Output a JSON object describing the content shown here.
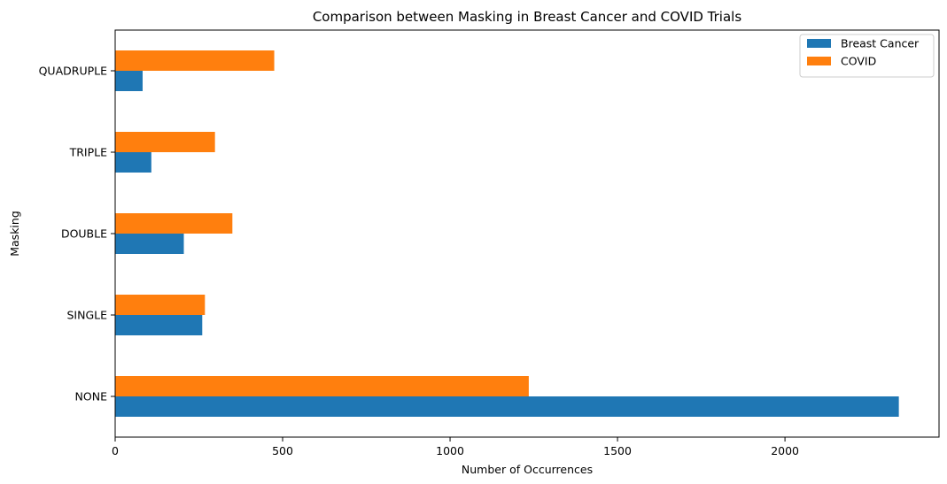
{
  "chart_data": {
    "type": "bar",
    "orientation": "horizontal",
    "title": "Comparison between Masking in Breast Cancer and COVID Trials",
    "xlabel": "Number of Occurrences",
    "ylabel": "Masking",
    "categories": [
      "NONE",
      "SINGLE",
      "DOUBLE",
      "TRIPLE",
      "QUADRUPLE"
    ],
    "series": [
      {
        "name": "Breast Cancer",
        "color": "#1f77b4",
        "values": [
          2340,
          260,
          205,
          108,
          82
        ]
      },
      {
        "name": "COVID",
        "color": "#ff7f0e",
        "values": [
          1235,
          268,
          350,
          298,
          475
        ]
      }
    ],
    "xlim": [
      0,
      2460
    ],
    "xticks": [
      0,
      500,
      1000,
      1500,
      2000
    ],
    "grid": false,
    "legend_position": "top-right"
  }
}
